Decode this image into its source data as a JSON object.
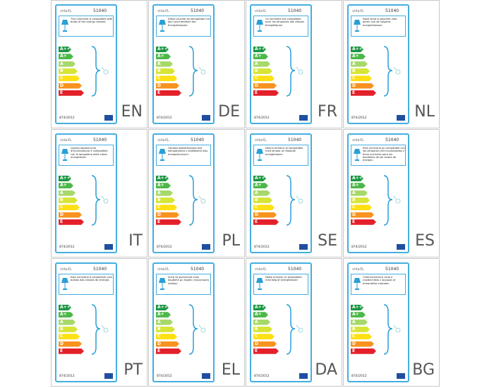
{
  "brand": "vidaXL",
  "model": "51040",
  "regulation": "874/2012",
  "classes": [
    {
      "label": "A++",
      "color": "#1a9641"
    },
    {
      "label": "A+",
      "color": "#4cb848"
    },
    {
      "label": "A",
      "color": "#a6d96a"
    },
    {
      "label": "B",
      "color": "#d6e536"
    },
    {
      "label": "C",
      "color": "#fee013"
    },
    {
      "label": "D",
      "color": "#f7931e"
    },
    {
      "label": "E",
      "color": "#e4202a"
    }
  ],
  "labels": [
    {
      "lang": "EN",
      "text": "This luminaire is compatible with bulbs of the energy classes:"
    },
    {
      "lang": "DE",
      "text": "Diese Leuchte ist kompatibel mit den Leuchtmitteln der Energieklassen:"
    },
    {
      "lang": "FR",
      "text": "Ce luminaire est compatible avec les ampoules des classes énergétiques:"
    },
    {
      "lang": "NL",
      "text": "Deze lamp is geschikt voor peren van de volgend energieklassen:"
    },
    {
      "lang": "IT",
      "text": "Questo apparecchio d'illuminazione è compatibile con le lampadine delle classi energetiche:"
    },
    {
      "lang": "PL",
      "text": "Oprawa oświetleniowa jest kompatybilna z żarówkami klas energetycznych:"
    },
    {
      "lang": "SE",
      "text": "Denna armatur är kompatibel med lampor av följande energiklasser:"
    },
    {
      "lang": "ES",
      "text": "Esta luminaria es compatible con las lámparas LED incorporadas y tiene enchufes para las bombillas de las clases de energía:"
    },
    {
      "lang": "PT",
      "text": "Esta luminária é compatível com bulbos das classes de energia:"
    },
    {
      "lang": "EL",
      "text": "Αυτό το φωτιστικό είναι συμβατό με λάμπες ενεργειακής κλάσης:"
    },
    {
      "lang": "DA",
      "text": "Dette armatur er kompatibel med følg af energiklasser:"
    },
    {
      "lang": "BG",
      "text": "Осветителното тяло е съвместимо с крушки от енергийни класове:"
    }
  ]
}
